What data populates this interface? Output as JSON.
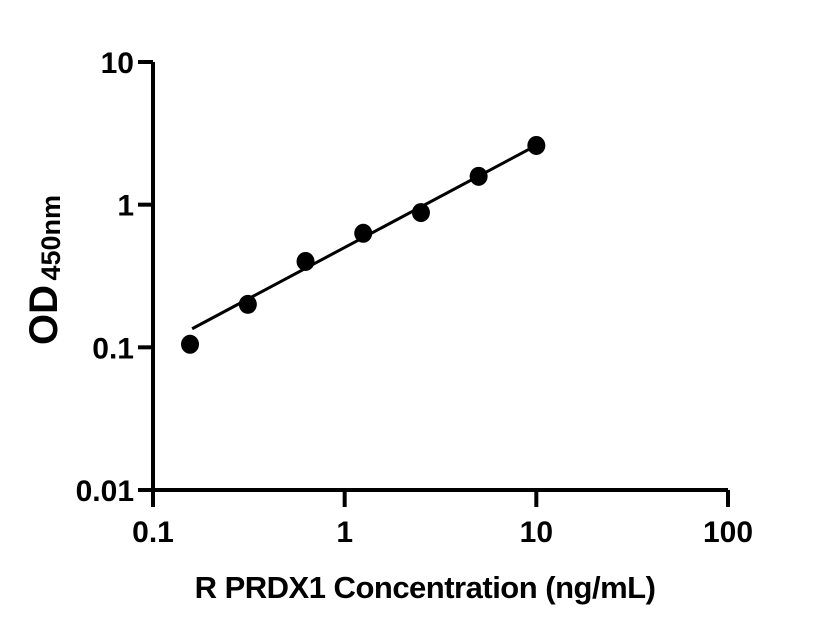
{
  "figure": {
    "background_color": "#ffffff",
    "ink_color": "#000000"
  },
  "chart_data": {
    "type": "scatter",
    "title": "",
    "xlabel": "R PRDX1 Concentration (ng/mL)",
    "ylabel": "OD",
    "ylabel_subscript": "450nm",
    "xscale": "log",
    "yscale": "log",
    "xlim": [
      0.1,
      100
    ],
    "ylim": [
      0.01,
      10
    ],
    "x_ticks": [
      0.1,
      1,
      10,
      100
    ],
    "x_tick_labels": [
      "0.1",
      "1",
      "10",
      "100"
    ],
    "y_ticks": [
      0.01,
      0.1,
      1,
      10
    ],
    "y_tick_labels": [
      "0.01",
      "0.1",
      "1",
      "10"
    ],
    "grid": false,
    "legend": null,
    "series": [
      {
        "name": "standard-points",
        "type": "scatter",
        "marker": "filled-circle",
        "color": "#000000",
        "x": [
          0.156,
          0.3125,
          0.625,
          1.25,
          2.5,
          5,
          10
        ],
        "y": [
          0.105,
          0.2,
          0.4,
          0.63,
          0.88,
          1.58,
          2.6
        ]
      },
      {
        "name": "fit-line",
        "type": "line",
        "color": "#000000",
        "x": [
          0.16,
          10.3
        ],
        "y": [
          0.135,
          2.66
        ]
      }
    ]
  }
}
